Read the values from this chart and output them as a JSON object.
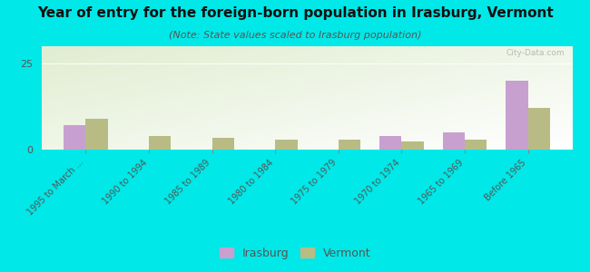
{
  "title": "Year of entry for the foreign-born population in Irasburg, Vermont",
  "subtitle": "(Note: State values scaled to Irasburg population)",
  "categories": [
    "1995 to March ...",
    "1990 to 1994",
    "1985 to 1989",
    "1980 to 1984",
    "1975 to 1979",
    "1970 to 1974",
    "1965 to 1969",
    "Before 1965"
  ],
  "irasburg_values": [
    7,
    0,
    0,
    0,
    0,
    4,
    5,
    20
  ],
  "vermont_values": [
    9,
    4,
    3.5,
    3,
    2.8,
    2.5,
    3,
    12
  ],
  "irasburg_color": "#c8a0d0",
  "vermont_color": "#b8bc84",
  "background_color": "#00e8e8",
  "ylim": [
    0,
    30
  ],
  "yticks": [
    0,
    25
  ],
  "bar_width": 0.35,
  "title_fontsize": 11,
  "subtitle_fontsize": 8,
  "watermark": "City-Data.com"
}
